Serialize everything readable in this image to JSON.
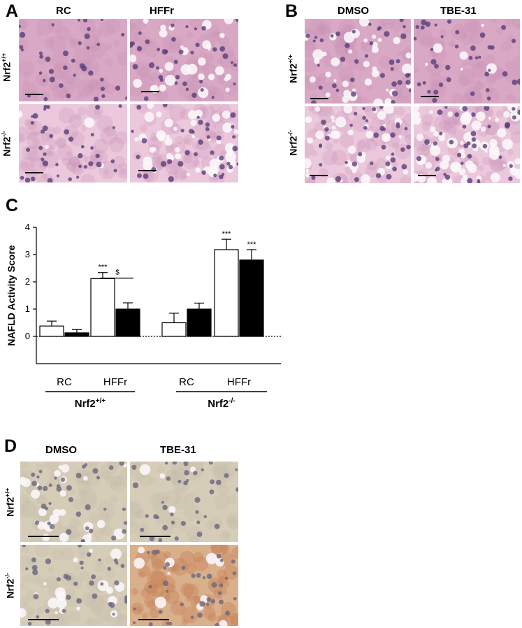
{
  "panels": {
    "A": {
      "letter": "A",
      "columns": [
        "RC",
        "HFFr"
      ],
      "rows": [
        {
          "main": "Nrf2",
          "sup": "+/+"
        },
        {
          "main": "Nrf2",
          "sup": "-/-"
        }
      ]
    },
    "B": {
      "letter": "B",
      "columns": [
        "DMSO",
        "TBE-31"
      ],
      "rows": [
        {
          "main": "Nrf2",
          "sup": "+/+"
        },
        {
          "main": "Nrf2",
          "sup": "-/-"
        }
      ]
    },
    "C": {
      "letter": "C"
    },
    "D": {
      "letter": "D",
      "columns": [
        "DMSO",
        "TBE-31"
      ],
      "rows": [
        {
          "main": "Nrf2",
          "sup": "+/+"
        },
        {
          "main": "Nrf2",
          "sup": "-/-"
        }
      ]
    }
  },
  "colors": {
    "he_background": "#d8a8c4",
    "he_light": "#ebc8dc",
    "stain_background": "#d6cdb8",
    "stain_brown": "#c8865a",
    "nucleus": "#5a3f7a",
    "bar_white": "#ffffff",
    "bar_black": "#000000"
  },
  "chart_data": {
    "type": "bar",
    "ylabel": "NAFLD Activity Score",
    "ylim": [
      -1,
      4
    ],
    "yticks": [
      0,
      1,
      2,
      3,
      4
    ],
    "zero_line": "dotted",
    "categories": [
      "RC",
      "HFFr",
      "RC",
      "HFFr"
    ],
    "groups": [
      {
        "label": "Nrf2",
        "sup": "+/+",
        "categories": [
          "RC",
          "HFFr"
        ]
      },
      {
        "label": "Nrf2",
        "sup": "-/-",
        "categories": [
          "RC",
          "HFFr"
        ]
      }
    ],
    "series": [
      {
        "fill": "white",
        "values": [
          0.38,
          2.12,
          0.5,
          3.18
        ],
        "errors": [
          0.18,
          0.22,
          0.35,
          0.38
        ]
      },
      {
        "fill": "black",
        "values": [
          0.13,
          1.0,
          1.0,
          2.8
        ],
        "errors": [
          0.12,
          0.23,
          0.22,
          0.38
        ]
      }
    ],
    "annotations": [
      {
        "text": "***",
        "category": 1,
        "series": 0
      },
      {
        "text": "***",
        "category": 3,
        "series": 0
      },
      {
        "text": "***",
        "category": 3,
        "series": 1
      },
      {
        "text": "$",
        "category": 1,
        "bracket": true
      }
    ]
  }
}
